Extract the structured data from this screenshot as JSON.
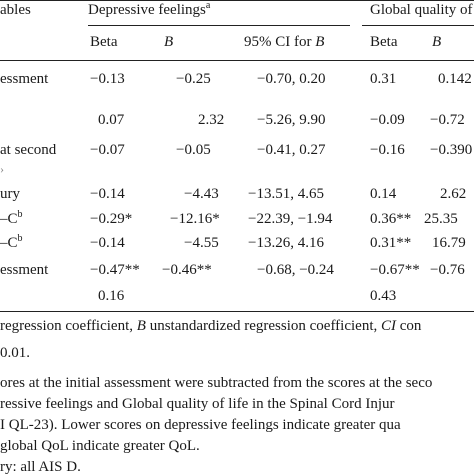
{
  "header": {
    "variables": "ables",
    "group1": "Depressive feelings",
    "group1_sup": "a",
    "group2": "Global quality of"
  },
  "subheader": {
    "g1_beta": "Beta",
    "g1_B": "B",
    "g1_ci_prefix": "95% CI for ",
    "g1_ci_B": "B",
    "g2_beta": "Beta",
    "g2_B": "B"
  },
  "rows": [
    {
      "label": "essment",
      "label_sup": "",
      "beta1": "−0.13",
      "b1": "−0.25",
      "ci1": "−0.70, 0.20",
      "beta2": "0.31",
      "b2": "0.142"
    },
    {
      "label": "",
      "label_sup": "",
      "beta1": "0.07",
      "b1": "2.32",
      "ci1": "−5.26, 9.90",
      "beta2": "−0.09",
      "b2": "−0.72"
    },
    {
      "label": "at second",
      "label_sup": "",
      "beta1": "−0.07",
      "b1": "−0.05",
      "ci1": "−0.41, 0.27",
      "beta2": "−0.16",
      "b2": "−0.390"
    },
    {
      "label": "ury",
      "label_sup": "",
      "beta1": "−0.14",
      "b1": "−4.43",
      "ci1": "−13.51, 4.65",
      "beta2": "0.14",
      "b2": "2.62"
    },
    {
      "label": "–C",
      "label_sup": "b",
      "beta1": "−0.29*",
      "b1": "−12.16*",
      "ci1": "−22.39, −1.94",
      "beta2": "0.36**",
      "b2": "25.35"
    },
    {
      "label": "–C",
      "label_sup": "b",
      "beta1": "−0.14",
      "b1": "−4.55",
      "ci1": "−13.26, 4.16",
      "beta2": "0.31**",
      "b2": "16.79"
    },
    {
      "label": "essment",
      "label_sup": "",
      "beta1": "−0.47**",
      "b1": "−0.46**",
      "ci1": "−0.68, −0.24",
      "beta2": "−0.67**",
      "b2": "−0.76"
    },
    {
      "label": "",
      "label_sup": "",
      "beta1": "0.16",
      "b1": "",
      "ci1": "",
      "beta2": "0.43",
      "b2": ""
    }
  ],
  "footnotes": {
    "line1_pre": "regression coefficient, ",
    "line1_B": "B",
    "line1_mid": " unstandardized regression coefficient, ",
    "line1_CI": "CI",
    "line1_post": " con",
    "line2": "0.01.",
    "line3": "ores at the initial assessment were subtracted from the scores at the seco",
    "line4": "ressive feelings and Global quality of life in the Spinal Cord Injur",
    "line5": "I QL-23). Lower scores on depressive feelings indicate greater qua",
    "line6": "global QoL indicate greater QoL.",
    "line7": "ry: all AIS D."
  }
}
